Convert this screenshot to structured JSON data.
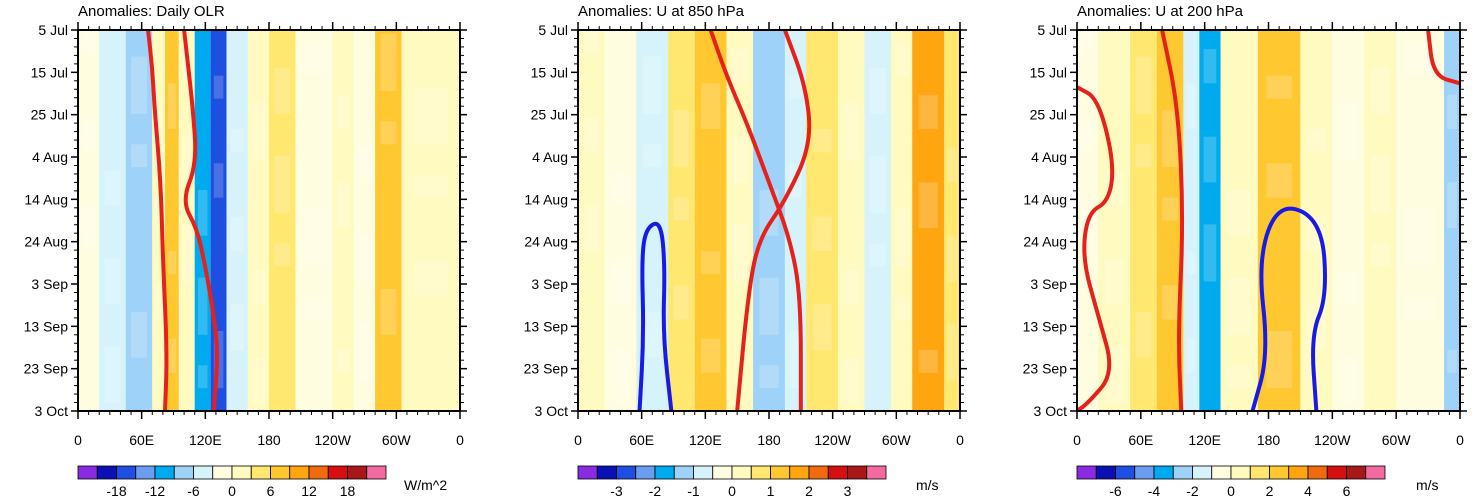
{
  "chart_data": [
    {
      "type": "heatmap",
      "title": "Anomalies: Daily OLR",
      "x_ticks": [
        "0",
        "60E",
        "120E",
        "180",
        "120W",
        "60W",
        "0"
      ],
      "y_ticks": [
        "5 Jul",
        "15 Jul",
        "25 Jul",
        "4 Aug",
        "14 Aug",
        "24 Aug",
        "3 Sep",
        "13 Sep",
        "23 Sep",
        "3 Oct"
      ],
      "xlim": [
        0,
        360
      ],
      "colorbar": {
        "units": "W/m^2",
        "tick_labels": [
          "-18",
          "-12",
          "-6",
          "0",
          "6",
          "12",
          "18"
        ],
        "tick_values": [
          -18,
          -12,
          -6,
          0,
          6,
          12,
          18
        ],
        "levels": [
          -24,
          -21,
          -18,
          -15,
          -12,
          -9,
          -6,
          -3,
          0,
          3,
          6,
          9,
          12,
          15,
          18,
          21,
          24
        ]
      },
      "bands": [
        {
          "x0": 0,
          "x1": 20,
          "value": -1
        },
        {
          "x0": 20,
          "x1": 45,
          "value": -4
        },
        {
          "x0": 45,
          "x1": 70,
          "value": -7
        },
        {
          "x0": 70,
          "x1": 82,
          "value": 2
        },
        {
          "x0": 82,
          "x1": 95,
          "value": 8
        },
        {
          "x0": 95,
          "x1": 110,
          "value": 2
        },
        {
          "x0": 110,
          "x1": 125,
          "value": -11
        },
        {
          "x0": 125,
          "x1": 140,
          "value": -16
        },
        {
          "x0": 140,
          "x1": 160,
          "value": -4
        },
        {
          "x0": 160,
          "x1": 180,
          "value": 1
        },
        {
          "x0": 180,
          "x1": 205,
          "value": 5
        },
        {
          "x0": 205,
          "x1": 240,
          "value": -2
        },
        {
          "x0": 240,
          "x1": 260,
          "value": 1
        },
        {
          "x0": 260,
          "x1": 280,
          "value": -2
        },
        {
          "x0": 280,
          "x1": 305,
          "value": 7
        },
        {
          "x0": 305,
          "x1": 360,
          "value": 1
        }
      ],
      "contours": [
        {
          "color": "#e6201a",
          "points": [
            [
              66,
              0
            ],
            [
              70,
              10
            ],
            [
              72,
              20
            ],
            [
              78,
              40
            ],
            [
              80,
              60
            ],
            [
              84,
              85
            ],
            [
              82,
              100
            ]
          ]
        },
        {
          "color": "#e6201a",
          "points": [
            [
              100,
              0
            ],
            [
              104,
              10
            ],
            [
              108,
              20
            ],
            [
              112,
              35
            ],
            [
              98,
              45
            ],
            [
              112,
              52
            ],
            [
              120,
              62
            ],
            [
              128,
              75
            ],
            [
              132,
              85
            ],
            [
              128,
              100
            ]
          ]
        }
      ]
    },
    {
      "type": "heatmap",
      "title": "Anomalies: U at 850 hPa",
      "x_ticks": [
        "0",
        "60E",
        "120E",
        "180",
        "120W",
        "60W",
        "0"
      ],
      "y_ticks": [
        "5 Jul",
        "15 Jul",
        "25 Jul",
        "4 Aug",
        "14 Aug",
        "24 Aug",
        "3 Sep",
        "13 Sep",
        "23 Sep",
        "3 Oct"
      ],
      "xlim": [
        0,
        360
      ],
      "colorbar": {
        "units": "m/s",
        "tick_labels": [
          "-3",
          "-2",
          "-1",
          "0",
          "1",
          "2",
          "3"
        ],
        "tick_values": [
          -3,
          -2,
          -1,
          0,
          1,
          2,
          3
        ],
        "levels": [
          -4,
          -3.5,
          -3,
          -2.5,
          -2,
          -1.5,
          -1,
          -0.5,
          0,
          0.5,
          1,
          1.5,
          2,
          2.5,
          3,
          3.5,
          4
        ]
      },
      "bands": [
        {
          "x0": 0,
          "x1": 25,
          "value": 0.3
        },
        {
          "x0": 25,
          "x1": 55,
          "value": -0.3
        },
        {
          "x0": 55,
          "x1": 85,
          "value": -0.8
        },
        {
          "x0": 85,
          "x1": 110,
          "value": 0.6
        },
        {
          "x0": 110,
          "x1": 140,
          "value": 1.3
        },
        {
          "x0": 140,
          "x1": 165,
          "value": 0.3
        },
        {
          "x0": 165,
          "x1": 195,
          "value": -1.3
        },
        {
          "x0": 195,
          "x1": 215,
          "value": -0.6
        },
        {
          "x0": 215,
          "x1": 245,
          "value": 0.8
        },
        {
          "x0": 245,
          "x1": 270,
          "value": 0.2
        },
        {
          "x0": 270,
          "x1": 295,
          "value": -0.7
        },
        {
          "x0": 295,
          "x1": 315,
          "value": 0.3
        },
        {
          "x0": 315,
          "x1": 345,
          "value": 1.6
        },
        {
          "x0": 345,
          "x1": 360,
          "value": 0.6
        }
      ],
      "contours": [
        {
          "color": "#e6201a",
          "points": [
            [
              125,
              0
            ],
            [
              140,
              12
            ],
            [
              160,
              25
            ],
            [
              180,
              40
            ],
            [
              200,
              55
            ],
            [
              210,
              70
            ],
            [
              210,
              100
            ]
          ]
        },
        {
          "color": "#e6201a",
          "points": [
            [
              195,
              0
            ],
            [
              215,
              15
            ],
            [
              220,
              30
            ],
            [
              195,
              45
            ],
            [
              170,
              55
            ],
            [
              160,
              70
            ],
            [
              150,
              100
            ]
          ]
        },
        {
          "color": "#1a1ae6",
          "points": [
            [
              58,
              100
            ],
            [
              62,
              80
            ],
            [
              60,
              60
            ],
            [
              64,
              52
            ],
            [
              78,
              50
            ],
            [
              82,
              62
            ],
            [
              80,
              80
            ],
            [
              88,
              100
            ]
          ]
        }
      ]
    },
    {
      "type": "heatmap",
      "title": "Anomalies: U at 200 hPa",
      "x_ticks": [
        "0",
        "60E",
        "120E",
        "180",
        "120W",
        "60W",
        "0"
      ],
      "y_ticks": [
        "5 Jul",
        "15 Jul",
        "25 Jul",
        "4 Aug",
        "14 Aug",
        "24 Aug",
        "3 Sep",
        "13 Sep",
        "23 Sep",
        "3 Oct"
      ],
      "xlim": [
        0,
        360
      ],
      "colorbar": {
        "units": "m/s",
        "tick_labels": [
          "-6",
          "-4",
          "-2",
          "0",
          "2",
          "4",
          "6"
        ],
        "tick_values": [
          -6,
          -4,
          -2,
          0,
          2,
          4,
          6
        ],
        "levels": [
          -8,
          -7,
          -6,
          -5,
          -4,
          -3,
          -2,
          -1,
          0,
          1,
          2,
          3,
          4,
          5,
          6,
          7,
          8
        ]
      },
      "bands": [
        {
          "x0": 0,
          "x1": 20,
          "value": -0.6
        },
        {
          "x0": 20,
          "x1": 50,
          "value": 0.5
        },
        {
          "x0": 50,
          "x1": 75,
          "value": 1.2
        },
        {
          "x0": 75,
          "x1": 100,
          "value": 2.6
        },
        {
          "x0": 100,
          "x1": 115,
          "value": -1.5
        },
        {
          "x0": 115,
          "x1": 135,
          "value": -3.2
        },
        {
          "x0": 135,
          "x1": 170,
          "value": 0.5
        },
        {
          "x0": 170,
          "x1": 210,
          "value": 2.5
        },
        {
          "x0": 210,
          "x1": 240,
          "value": 0.4
        },
        {
          "x0": 240,
          "x1": 270,
          "value": -0.5
        },
        {
          "x0": 270,
          "x1": 300,
          "value": 0.3
        },
        {
          "x0": 300,
          "x1": 345,
          "value": -0.8
        },
        {
          "x0": 345,
          "x1": 360,
          "value": -2.5
        }
      ],
      "contours": [
        {
          "color": "#e6201a",
          "points": [
            [
              0,
              15
            ],
            [
              20,
              18
            ],
            [
              35,
              35
            ],
            [
              30,
              45
            ],
            [
              10,
              48
            ],
            [
              5,
              60
            ],
            [
              20,
              75
            ],
            [
              35,
              90
            ],
            [
              10,
              98
            ],
            [
              0,
              100
            ]
          ]
        },
        {
          "color": "#e6201a",
          "points": [
            [
              80,
              0
            ],
            [
              95,
              20
            ],
            [
              100,
              50
            ],
            [
              95,
              80
            ],
            [
              98,
              100
            ]
          ]
        },
        {
          "color": "#e6201a",
          "points": [
            [
              330,
              0
            ],
            [
              335,
              12
            ],
            [
              360,
              14
            ]
          ]
        },
        {
          "color": "#1a1ae6",
          "points": [
            [
              165,
              100
            ],
            [
              180,
              85
            ],
            [
              170,
              60
            ],
            [
              190,
              45
            ],
            [
              230,
              50
            ],
            [
              235,
              70
            ],
            [
              220,
              80
            ],
            [
              225,
              100
            ]
          ]
        }
      ]
    }
  ]
}
